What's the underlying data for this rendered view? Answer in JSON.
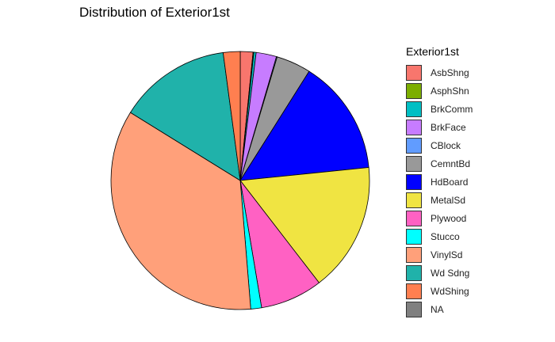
{
  "chart_data": {
    "type": "pie",
    "title": "Distribution of Exterior1st",
    "legend_title": "Exterior1st",
    "legend_position": "right",
    "categories": [
      "AsbShng",
      "AsphShn",
      "BrkComm",
      "BrkFace",
      "CBlock",
      "CemntBd",
      "HdBoard",
      "MetalSd",
      "Plywood",
      "Stucco",
      "VinylSd",
      "Wd Sdng",
      "WdShing",
      "NA"
    ],
    "values": [
      1.65,
      0.1,
      0.3,
      2.65,
      0.1,
      4.5,
      15.0,
      16.8,
      8.1,
      1.4,
      36.5,
      14.6,
      2.2,
      0.0
    ],
    "colors": [
      "#F8766D",
      "#7CAE00",
      "#00BFC4",
      "#C77CFF",
      "#619CFF",
      "#999999",
      "#0000FF",
      "#F0E442",
      "#FF61C3",
      "#00FFFF",
      "#FFA07A",
      "#20B2AA",
      "#FF7F50",
      "#808080"
    ]
  }
}
